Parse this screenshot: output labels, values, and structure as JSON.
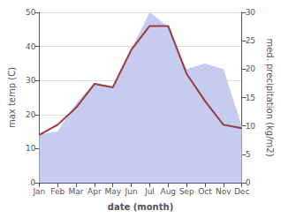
{
  "chart_data": {
    "type": "line",
    "categories": [
      "Jan",
      "Feb",
      "Mar",
      "Apr",
      "May",
      "Jun",
      "Jul",
      "Aug",
      "Sep",
      "Oct",
      "Nov",
      "Dec"
    ],
    "series": [
      {
        "type": "area",
        "axis": "y2",
        "color": "#c5ccf0",
        "values": [
          8.5,
          9,
          14,
          17.5,
          17,
          23.5,
          30,
          27.5,
          20,
          21,
          20,
          10
        ]
      },
      {
        "type": "line",
        "axis": "y",
        "color": "#9e3939",
        "values": [
          14,
          17,
          22,
          29,
          28,
          39,
          46,
          46,
          32,
          24,
          17,
          16
        ]
      }
    ],
    "xlabel": "date (month)",
    "ylabel": "max temp (C)",
    "y2label": "med. precipitation (kg/m2)",
    "ylim": [
      0,
      50
    ],
    "yticks": [
      0,
      10,
      20,
      30,
      40,
      50
    ],
    "y2lim": [
      0,
      30
    ],
    "y2ticks": [
      0,
      5,
      10,
      15,
      20,
      25,
      30
    ],
    "grid": true
  }
}
